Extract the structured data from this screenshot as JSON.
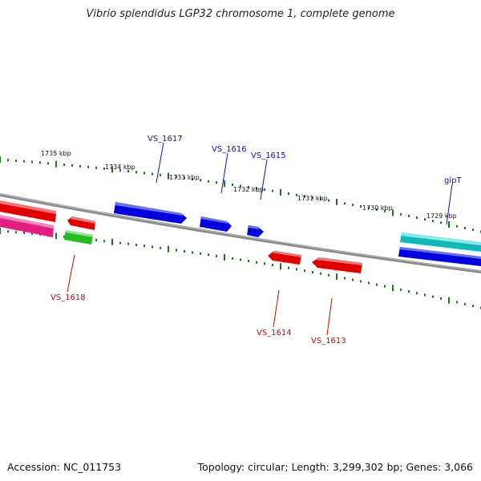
{
  "title": "Vibrio splendidus LGP32 chromosome 1, complete genome",
  "accession": "Accession: NC_011753",
  "summary": "Topology: circular; Length: 3,299,302 bp; Genes: 3,066",
  "colors": {
    "backbone": "#7f7f7f",
    "ruler": "#1a7a1a",
    "forward_label": "#1010cc",
    "reverse_label": "#dd0000"
  },
  "ruler_labels": [
    "1735 kbp",
    "1734 kbp",
    "1733 kbp",
    "1732 kbp",
    "1731 kbp",
    "1730 kbp",
    "1729 kbp"
  ],
  "gene_labels": {
    "vs1617": "VS_1617",
    "vs1616": "VS_1616",
    "vs1615": "VS_1615",
    "glpT": "glpT",
    "vs1618": "VS_1618",
    "vs1614": "VS_1614",
    "vs1613": "VS_1613"
  }
}
